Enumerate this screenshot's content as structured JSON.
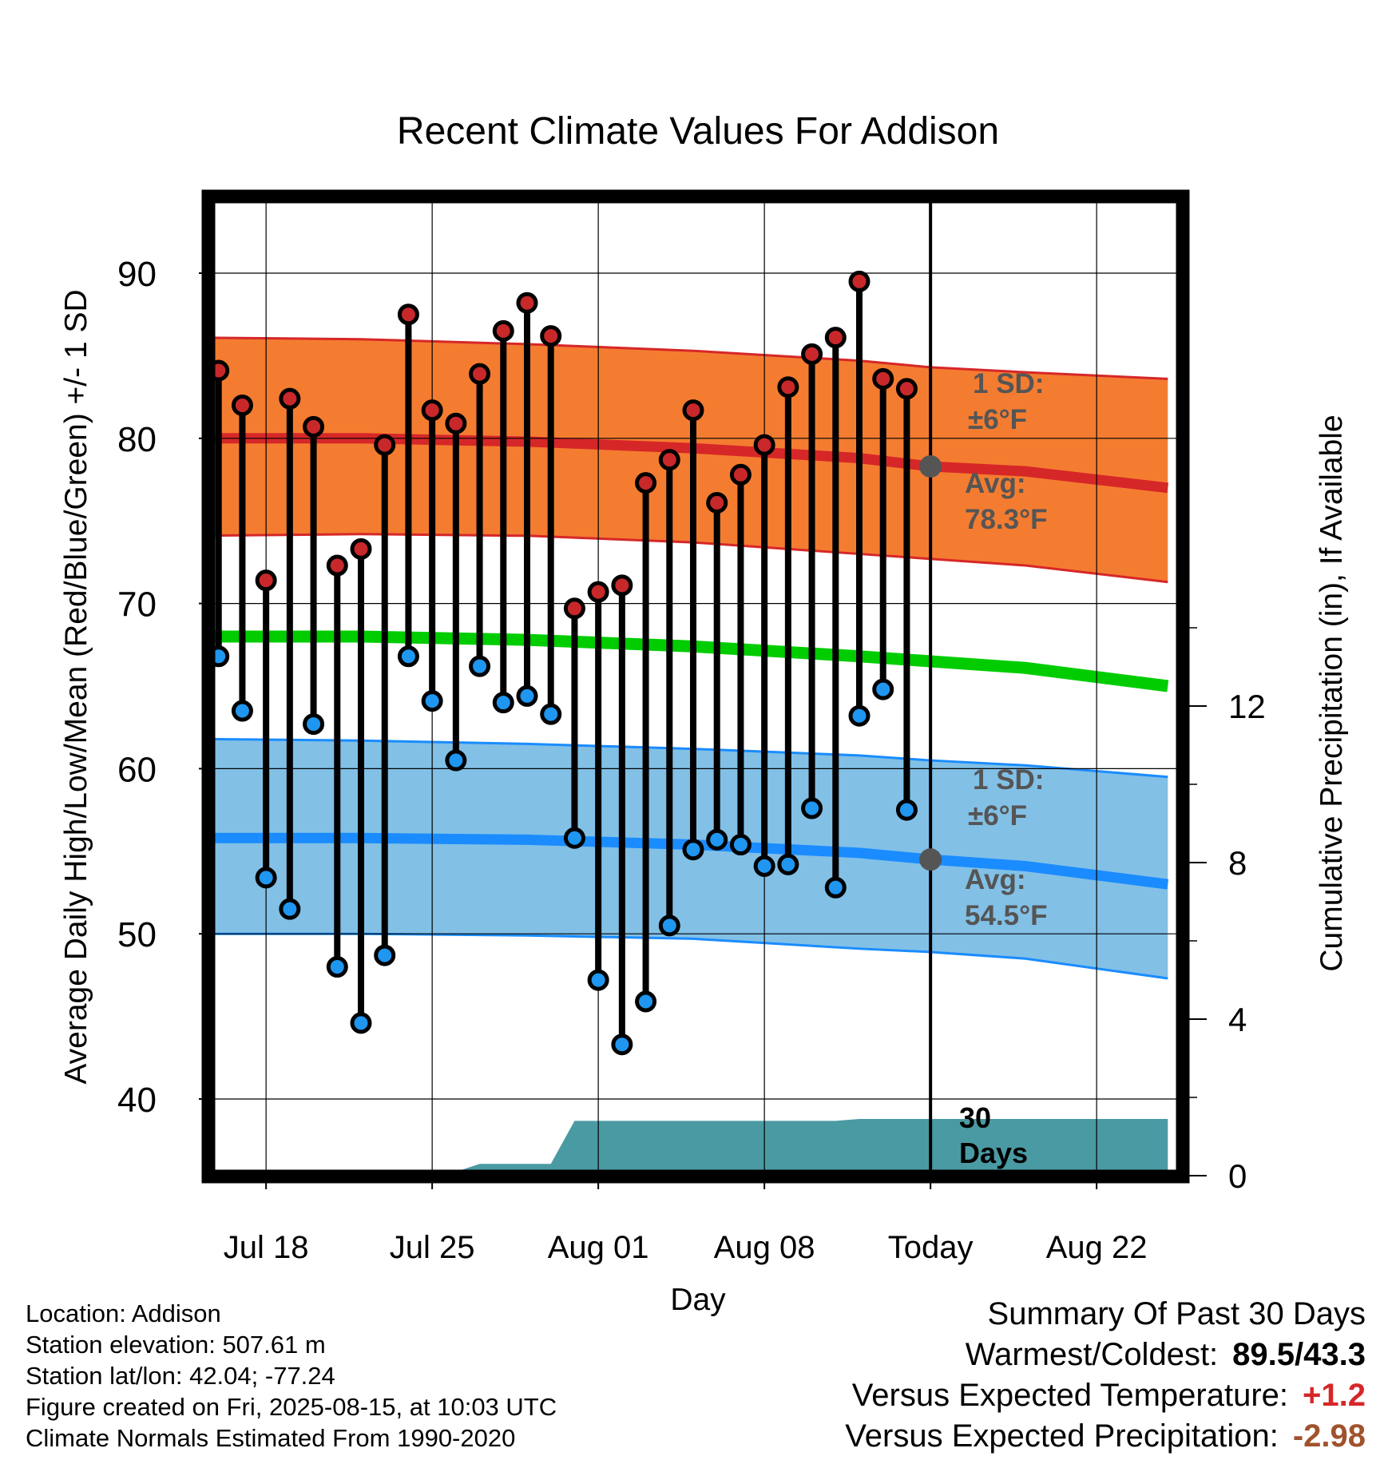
{
  "chart_data": {
    "type": "line",
    "title": "Recent Climate Values For Addison",
    "xlabel": "Day",
    "ylabel": "Average Daily High/Low/Mean (Red/Blue/Green) +/- 1 SD",
    "y2label": "Cumulative Precipitation (in), If Available",
    "ylim": [
      35,
      95
    ],
    "y2lim": [
      0,
      16
    ],
    "xlim": [
      "2025-07-15",
      "2025-08-25"
    ],
    "x_ticks": [
      {
        "date": "2025-07-18",
        "label": "Jul 18"
      },
      {
        "date": "2025-07-25",
        "label": "Jul 25"
      },
      {
        "date": "2025-08-01",
        "label": "Aug 01"
      },
      {
        "date": "2025-08-08",
        "label": "Aug 08"
      },
      {
        "date": "2025-08-15",
        "label": "Today"
      },
      {
        "date": "2025-08-22",
        "label": "Aug 22"
      }
    ],
    "y_ticks": [
      40,
      50,
      60,
      70,
      80,
      90
    ],
    "y2_ticks": [
      0,
      4,
      8,
      12
    ],
    "grid": true,
    "today": "2025-08-15",
    "dates": [
      "2025-07-16",
      "2025-07-17",
      "2025-07-18",
      "2025-07-19",
      "2025-07-20",
      "2025-07-21",
      "2025-07-22",
      "2025-07-23",
      "2025-07-24",
      "2025-07-25",
      "2025-07-26",
      "2025-07-27",
      "2025-07-28",
      "2025-07-29",
      "2025-07-30",
      "2025-07-31",
      "2025-08-01",
      "2025-08-02",
      "2025-08-03",
      "2025-08-04",
      "2025-08-05",
      "2025-08-06",
      "2025-08-07",
      "2025-08-08",
      "2025-08-09",
      "2025-08-10",
      "2025-08-11",
      "2025-08-12",
      "2025-08-13",
      "2025-08-14"
    ],
    "series": [
      {
        "role": "high",
        "values": [
          84.1,
          82.0,
          71.4,
          82.4,
          80.7,
          72.3,
          73.3,
          79.6,
          87.5,
          81.7,
          80.9,
          83.9,
          86.5,
          88.2,
          86.2,
          69.7,
          70.7,
          71.1,
          77.3,
          78.7,
          81.7,
          76.1,
          77.8,
          79.6,
          83.1,
          85.1,
          86.1,
          89.5,
          83.6,
          83.0
        ]
      },
      {
        "role": "low",
        "values": [
          66.8,
          63.5,
          53.4,
          51.5,
          62.7,
          48.0,
          44.6,
          48.7,
          66.8,
          64.1,
          60.5,
          66.2,
          64.0,
          64.4,
          63.3,
          55.8,
          47.2,
          43.3,
          45.9,
          50.5,
          55.1,
          55.7,
          55.4,
          54.1,
          54.2,
          57.6,
          52.8,
          63.2,
          64.8,
          57.5
        ]
      }
    ],
    "normals": {
      "dates": [
        "2025-07-15",
        "2025-07-22",
        "2025-07-29",
        "2025-08-05",
        "2025-08-12",
        "2025-08-15",
        "2025-08-19",
        "2025-08-25"
      ],
      "high_avg": [
        80.0,
        80.0,
        79.8,
        79.4,
        78.8,
        78.3,
        78.0,
        77.0
      ],
      "high_upper": [
        86.1,
        86.0,
        85.7,
        85.3,
        84.7,
        84.3,
        84.0,
        83.6
      ],
      "high_lower": [
        74.1,
        74.2,
        74.1,
        73.7,
        73.0,
        72.7,
        72.3,
        71.3
      ],
      "mean_avg": [
        68.0,
        68.0,
        67.8,
        67.4,
        66.8,
        66.5,
        66.1,
        65.0
      ],
      "low_avg": [
        55.8,
        55.8,
        55.7,
        55.4,
        54.9,
        54.5,
        54.1,
        53.0
      ],
      "low_upper": [
        61.8,
        61.7,
        61.5,
        61.2,
        60.8,
        60.5,
        60.2,
        59.5
      ],
      "low_lower": [
        50.0,
        50.0,
        49.9,
        49.7,
        49.1,
        48.9,
        48.5,
        47.3
      ]
    },
    "precip": {
      "dates": [
        "2025-07-15",
        "2025-07-16",
        "2025-07-25",
        "2025-07-26",
        "2025-07-27",
        "2025-07-28",
        "2025-07-30",
        "2025-07-31",
        "2025-08-11",
        "2025-08-12",
        "2025-08-25"
      ],
      "values": [
        0.0,
        0.1,
        0.1,
        0.1,
        0.3,
        0.3,
        0.3,
        1.4,
        1.4,
        1.45,
        1.45
      ]
    },
    "annotations": {
      "high_sd": "1 SD:",
      "high_sd_value": "±6°F",
      "high_avg_label": "Avg:",
      "high_avg_value": "78.3°F",
      "low_sd": "1 SD:",
      "low_sd_value": "±6°F",
      "low_avg_label": "Avg:",
      "low_avg_value": "54.5°F",
      "window_line1": "30",
      "window_line2": "Days"
    },
    "colors": {
      "high_band": "#f47c30",
      "high_line": "#d62728",
      "low_band": "#82c0e6",
      "low_line": "#1a8cff",
      "mean_line": "#00cc00",
      "precip": "#4a9aa3",
      "high_dot": "#c8282a",
      "low_dot": "#1f96f0",
      "annotation": "#555555"
    }
  },
  "footer": {
    "location": "Location: Addison",
    "elevation": "Station elevation: 507.61 m",
    "latlon": "Station lat/lon: 42.04; -77.24",
    "created": "Figure created on Fri, 2025-08-15, at 10:03 UTC",
    "normals": "Climate Normals Estimated From 1990-2020"
  },
  "summary": {
    "title": "Summary Of Past 30 Days",
    "warmest_label": "Warmest/Coldest:",
    "warmest_value": "89.5/43.3",
    "temp_label": "Versus Expected Temperature:",
    "temp_value": "+1.2",
    "temp_color": "#d62728",
    "precip_label": "Versus Expected Precipitation:",
    "precip_value": "-2.98",
    "precip_color": "#a0522d"
  }
}
